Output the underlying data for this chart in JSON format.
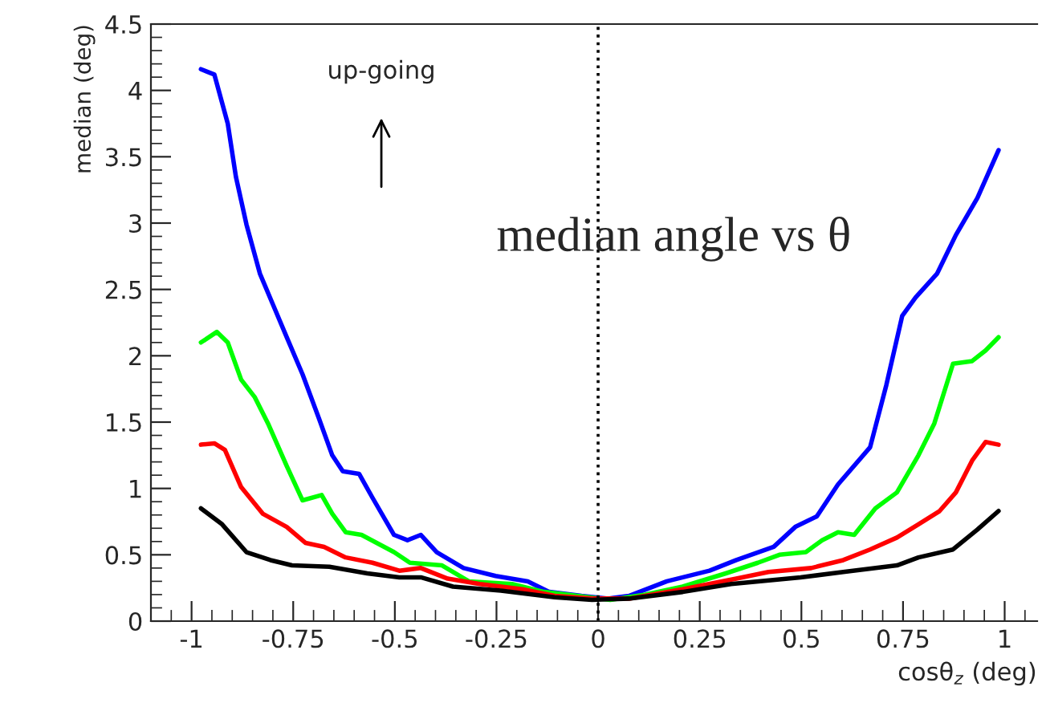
{
  "chart_data": {
    "type": "line",
    "xlabel": "cosθ$_{z}$ (deg)",
    "ylabel": "median (deg)",
    "xlim": [
      -1.1,
      1.08
    ],
    "xticks": [
      -1,
      -0.75,
      -0.5,
      -0.25,
      0,
      0.25,
      0.5,
      0.75,
      1
    ],
    "ylim": [
      0,
      4.5
    ],
    "yticks": [
      0,
      0.5,
      1,
      1.5,
      2,
      2.5,
      3,
      3.5,
      4,
      4.5
    ],
    "grid": false,
    "legend": false,
    "marker": "none",
    "line_style": "solid",
    "ref_lines": [
      {
        "axis": "x",
        "value": 0,
        "line_style": "dotted",
        "color": "#000000"
      }
    ],
    "annotations": [
      "up-going",
      "median angle vs θ"
    ],
    "series": [
      {
        "color": "#0000ff",
        "x": [
          -0.977,
          -0.944,
          -0.911,
          -0.891,
          -0.865,
          -0.832,
          -0.799,
          -0.766,
          -0.727,
          -0.687,
          -0.654,
          -0.628,
          -0.588,
          -0.555,
          -0.502,
          -0.469,
          -0.436,
          -0.397,
          -0.331,
          -0.252,
          -0.173,
          -0.12,
          -0.041,
          0.025,
          0.076,
          0.169,
          0.274,
          0.34,
          0.432,
          0.485,
          0.538,
          0.59,
          0.669,
          0.709,
          0.748,
          0.781,
          0.834,
          0.88,
          0.933,
          0.985
        ],
        "values": [
          4.16,
          4.12,
          3.75,
          3.35,
          2.99,
          2.62,
          2.38,
          2.14,
          1.86,
          1.53,
          1.25,
          1.13,
          1.11,
          0.93,
          0.65,
          0.61,
          0.65,
          0.52,
          0.4,
          0.34,
          0.3,
          0.22,
          0.19,
          0.17,
          0.19,
          0.3,
          0.38,
          0.46,
          0.56,
          0.71,
          0.79,
          1.03,
          1.31,
          1.78,
          2.3,
          2.44,
          2.62,
          2.91,
          3.19,
          3.55
        ]
      },
      {
        "color": "#00ff00",
        "x": [
          -0.977,
          -0.938,
          -0.911,
          -0.878,
          -0.845,
          -0.812,
          -0.766,
          -0.727,
          -0.68,
          -0.654,
          -0.621,
          -0.582,
          -0.502,
          -0.463,
          -0.384,
          -0.318,
          -0.212,
          -0.133,
          -0.041,
          0.03,
          0.116,
          0.208,
          0.314,
          0.393,
          0.446,
          0.511,
          0.551,
          0.59,
          0.63,
          0.682,
          0.735,
          0.788,
          0.827,
          0.873,
          0.92,
          0.953,
          0.985
        ],
        "values": [
          2.1,
          2.18,
          2.1,
          1.82,
          1.69,
          1.49,
          1.17,
          0.91,
          0.95,
          0.81,
          0.67,
          0.65,
          0.52,
          0.44,
          0.42,
          0.3,
          0.28,
          0.22,
          null,
          0.16,
          0.2,
          0.26,
          0.36,
          0.44,
          0.5,
          0.52,
          0.61,
          0.67,
          0.65,
          0.85,
          0.97,
          1.25,
          1.49,
          1.94,
          1.96,
          2.04,
          2.14
        ]
      },
      {
        "color": "#ff0000",
        "x": [
          -0.977,
          -0.944,
          -0.918,
          -0.878,
          -0.825,
          -0.766,
          -0.72,
          -0.674,
          -0.621,
          -0.555,
          -0.489,
          -0.436,
          -0.37,
          -0.291,
          -0.186,
          -0.107,
          -0.015,
          0.076,
          0.208,
          0.34,
          0.419,
          0.524,
          0.603,
          0.669,
          0.735,
          0.788,
          0.84,
          0.88,
          0.92,
          0.953,
          0.985
        ],
        "values": [
          1.33,
          1.34,
          1.29,
          1.01,
          0.81,
          0.71,
          0.59,
          0.56,
          0.48,
          0.44,
          0.38,
          0.4,
          0.32,
          0.28,
          0.24,
          0.19,
          0.17,
          0.17,
          0.24,
          0.32,
          0.37,
          0.4,
          0.46,
          0.54,
          0.63,
          0.73,
          0.83,
          0.97,
          1.21,
          1.35,
          1.33
        ]
      },
      {
        "color": "#000000",
        "x": [
          -0.977,
          -0.925,
          -0.865,
          -0.806,
          -0.753,
          -0.661,
          -0.568,
          -0.489,
          -0.436,
          -0.357,
          -0.239,
          -0.107,
          -0.015,
          0.076,
          0.208,
          0.327,
          0.498,
          0.603,
          0.735,
          0.788,
          0.873,
          0.933,
          0.985
        ],
        "values": [
          0.85,
          0.73,
          0.52,
          0.46,
          0.42,
          0.41,
          0.36,
          0.33,
          0.33,
          0.26,
          0.23,
          0.18,
          0.16,
          0.17,
          0.22,
          0.28,
          0.33,
          0.37,
          0.42,
          0.48,
          0.54,
          0.69,
          0.83
        ]
      }
    ]
  }
}
